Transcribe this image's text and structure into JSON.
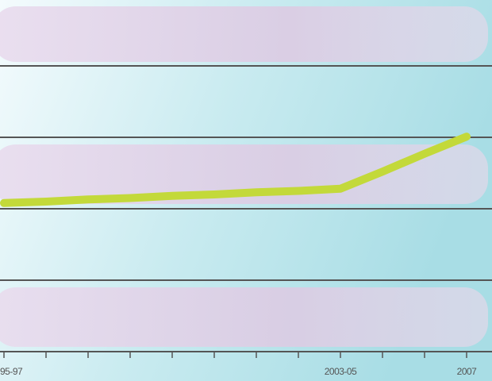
{
  "chart_data": {
    "type": "line",
    "categories": [
      "95-97",
      null,
      null,
      null,
      null,
      null,
      null,
      null,
      "2003-05",
      null,
      null,
      "2007"
    ],
    "series": [
      {
        "color": "#c3d93a",
        "values": [
          2.08,
          2.1,
          2.13,
          2.15,
          2.18,
          2.2,
          2.23,
          2.25,
          2.28,
          2.52,
          2.77,
          3.01
        ]
      }
    ],
    "ylim": [
      0,
      5
    ]
  }
}
